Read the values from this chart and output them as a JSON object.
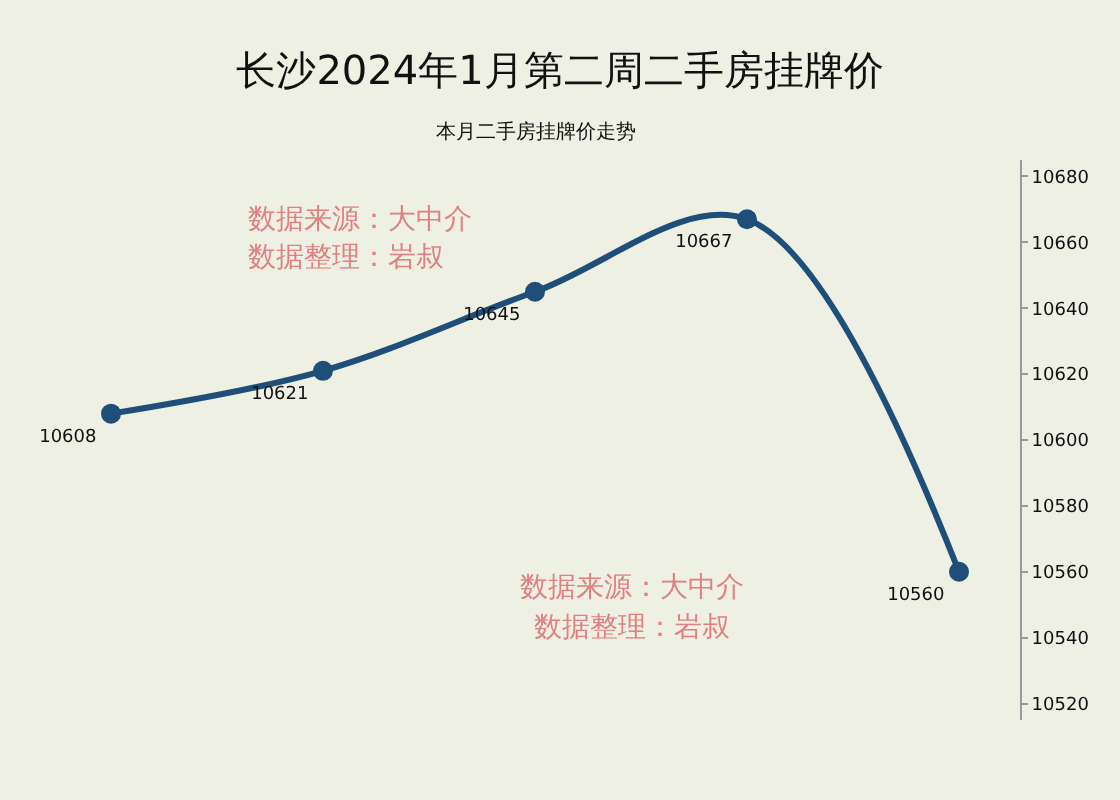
{
  "chart_data": {
    "type": "line",
    "title": "长沙2024年1月第二周二手房挂牌价",
    "subtitle": "本月二手房挂牌价走势",
    "categories": [
      null,
      null,
      null,
      null,
      null
    ],
    "series": [
      {
        "color": "#1f4e79",
        "values": [
          10608,
          10621,
          10645,
          10667,
          10560
        ]
      }
    ],
    "ylim": [
      10515,
      10685
    ],
    "yticks": [
      10520,
      10540,
      10560,
      10580,
      10600,
      10620,
      10640,
      10660,
      10680
    ],
    "data_labels": true,
    "marker": "circle",
    "line_style": "solid",
    "grid": false,
    "annotations": [
      "数据来源：大中介",
      "数据整理：岩叔",
      "数据来源：大中介",
      "数据整理：岩叔"
    ]
  }
}
